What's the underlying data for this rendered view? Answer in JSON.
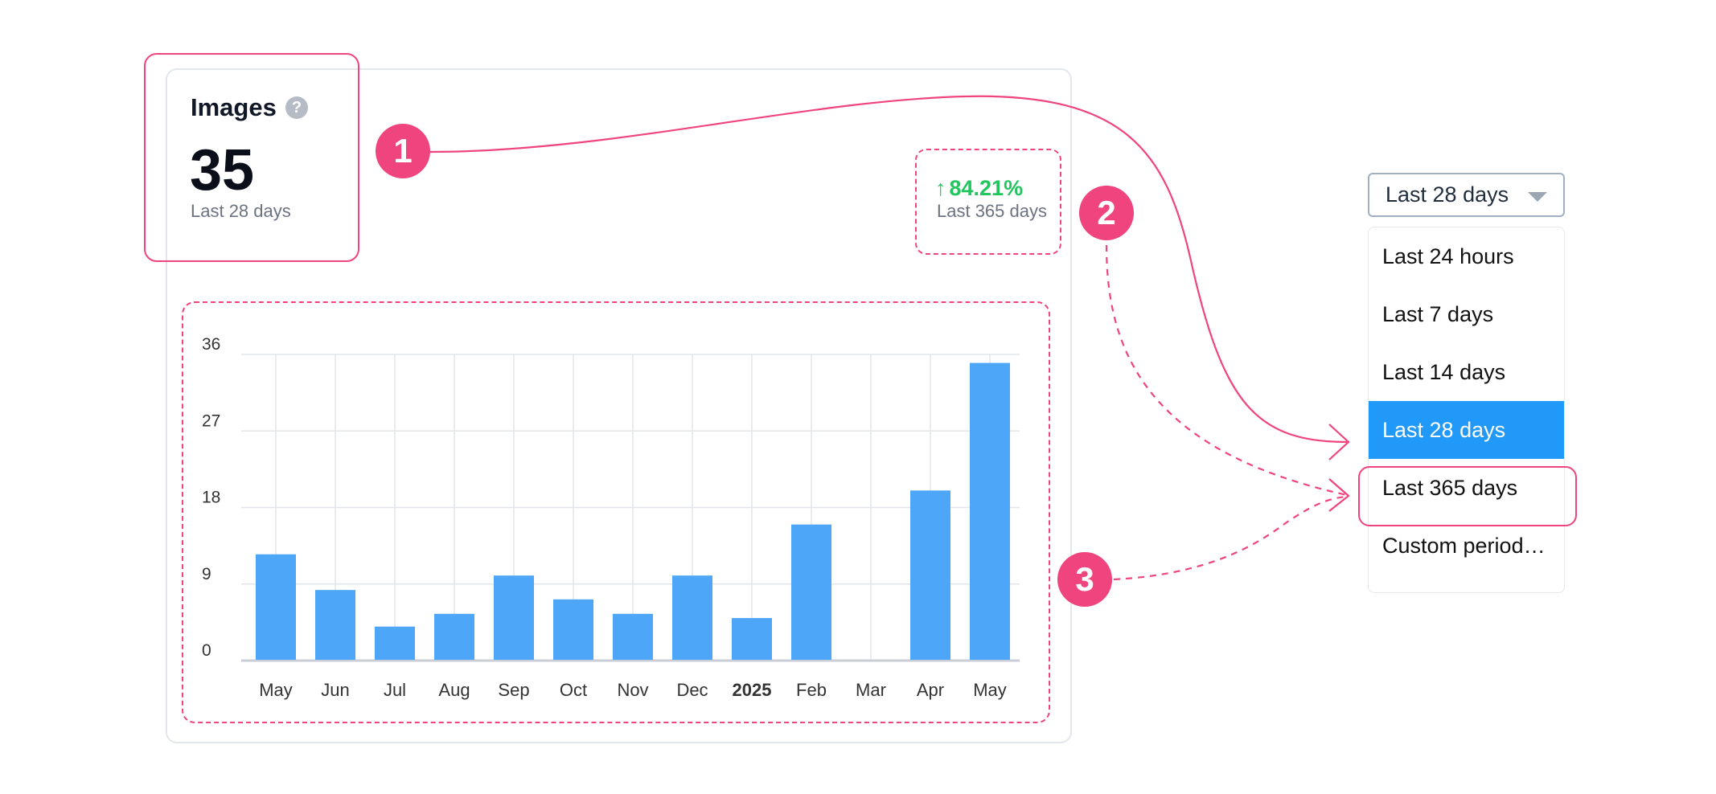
{
  "widget": {
    "title": "Images",
    "help_icon": "question-circle-icon",
    "value": "35",
    "value_period": "Last 28 days",
    "trend_arrow": "↑",
    "trend_value": "84.21%",
    "trend_period": "Last 365 days"
  },
  "annotations": {
    "badge1": "1",
    "badge2": "2",
    "badge3": "3"
  },
  "dropdown": {
    "selected_label": "Last 28 days",
    "options": [
      {
        "label": "Last 24 hours"
      },
      {
        "label": "Last 7 days"
      },
      {
        "label": "Last 14 days"
      },
      {
        "label": "Last 28 days",
        "selected": true
      },
      {
        "label": "Last 365 days"
      },
      {
        "label": "Custom period…"
      }
    ]
  },
  "colors": {
    "accent": "#f0447e",
    "bar": "#4da6f8",
    "trend_up": "#22c55e",
    "selected_bg": "#2199f8"
  },
  "chart_data": {
    "type": "bar",
    "categories": [
      "May",
      "Jun",
      "Jul",
      "Aug",
      "Sep",
      "Oct",
      "Nov",
      "Dec",
      "2025",
      "Feb",
      "Mar",
      "Apr",
      "May"
    ],
    "bold_categories": [
      "2025"
    ],
    "values": [
      12.5,
      8.3,
      4,
      5.5,
      10,
      7.2,
      5.5,
      10,
      5,
      16,
      0,
      20,
      35
    ],
    "yticks": [
      0,
      9,
      18,
      27,
      36
    ],
    "ylim": [
      0,
      36
    ],
    "grid": true,
    "title": "",
    "xlabel": "",
    "ylabel": ""
  }
}
